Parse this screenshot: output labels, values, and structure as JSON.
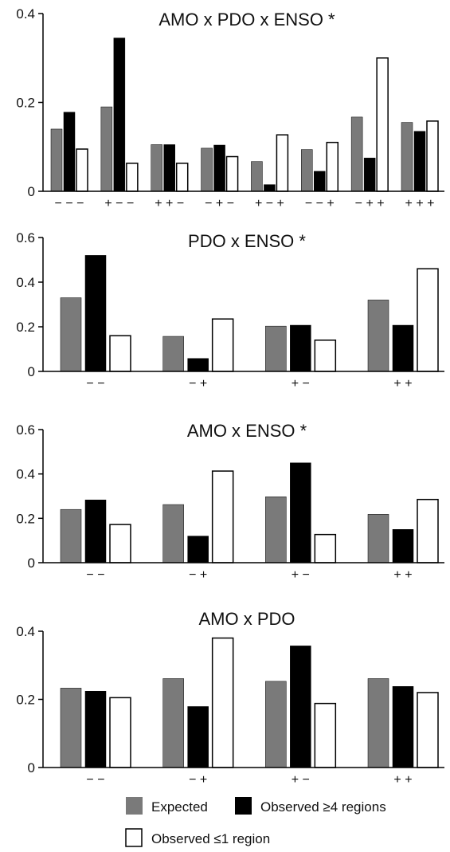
{
  "chart_data": [
    {
      "type": "bar",
      "title": "AMO x PDO x ENSO *",
      "categories": [
        "− − −",
        "+ − −",
        "+ + −",
        "− + −",
        "+ − +",
        "− − +",
        "− + +",
        "+ + +"
      ],
      "ylim": [
        0,
        0.4
      ],
      "yticks": [
        "0",
        "0.2",
        "0.4"
      ],
      "ytick_values": [
        0,
        0.2,
        0.4
      ],
      "grid": false,
      "series": [
        {
          "name": "Expected",
          "values": [
            0.14,
            0.19,
            0.105,
            0.097,
            0.067,
            0.094,
            0.167,
            0.155
          ]
        },
        {
          "name": "Observed ≥4 regions",
          "values": [
            0.178,
            0.345,
            0.105,
            0.104,
            0.015,
            0.045,
            0.075,
            0.135
          ]
        },
        {
          "name": "Observed ≤1 region",
          "values": [
            0.095,
            0.063,
            0.063,
            0.078,
            0.127,
            0.11,
            0.3,
            0.158
          ]
        }
      ]
    },
    {
      "type": "bar",
      "title": "PDO x ENSO *",
      "categories": [
        "− −",
        "− +",
        "+ −",
        "+ +"
      ],
      "ylim": [
        0,
        0.6
      ],
      "yticks": [
        "0",
        "0.2",
        "0.4",
        "0.6"
      ],
      "ytick_values": [
        0,
        0.2,
        0.4,
        0.6
      ],
      "grid": false,
      "series": [
        {
          "name": "Expected",
          "values": [
            0.33,
            0.157,
            0.203,
            0.32
          ]
        },
        {
          "name": "Observed ≥4 regions",
          "values": [
            0.52,
            0.058,
            0.207,
            0.207
          ]
        },
        {
          "name": "Observed ≤1 region",
          "values": [
            0.16,
            0.235,
            0.14,
            0.46
          ]
        }
      ]
    },
    {
      "type": "bar",
      "title": "AMO x ENSO *",
      "categories": [
        "− −",
        "− +",
        "+ −",
        "+ +"
      ],
      "ylim": [
        0,
        0.6
      ],
      "yticks": [
        "0",
        "0.2",
        "0.4",
        "0.6"
      ],
      "ytick_values": [
        0,
        0.2,
        0.4,
        0.6
      ],
      "grid": false,
      "series": [
        {
          "name": "Expected",
          "values": [
            0.24,
            0.262,
            0.297,
            0.218
          ]
        },
        {
          "name": "Observed ≥4 regions",
          "values": [
            0.283,
            0.12,
            0.45,
            0.15
          ]
        },
        {
          "name": "Observed ≤1 region",
          "values": [
            0.172,
            0.413,
            0.127,
            0.285
          ]
        }
      ]
    },
    {
      "type": "bar",
      "title": "AMO x PDO",
      "categories": [
        "− −",
        "− +",
        "+ −",
        "+ +"
      ],
      "ylim": [
        0,
        0.4
      ],
      "yticks": [
        "0",
        "0.2",
        "0.4"
      ],
      "ytick_values": [
        0,
        0.2,
        0.4
      ],
      "grid": false,
      "series": [
        {
          "name": "Expected",
          "values": [
            0.233,
            0.261,
            0.253,
            0.261
          ]
        },
        {
          "name": "Observed ≥4 regions",
          "values": [
            0.224,
            0.179,
            0.357,
            0.238
          ]
        },
        {
          "name": "Observed ≤1 region",
          "values": [
            0.205,
            0.38,
            0.188,
            0.22
          ]
        }
      ]
    }
  ],
  "legend": {
    "placement": "bottom",
    "items": [
      {
        "label": "Expected",
        "color": "#7a7a7a"
      },
      {
        "label": "Observed ≥4 regions",
        "color": "#000000"
      },
      {
        "label": "Observed ≤1 region",
        "color": "#ffffff"
      }
    ]
  }
}
